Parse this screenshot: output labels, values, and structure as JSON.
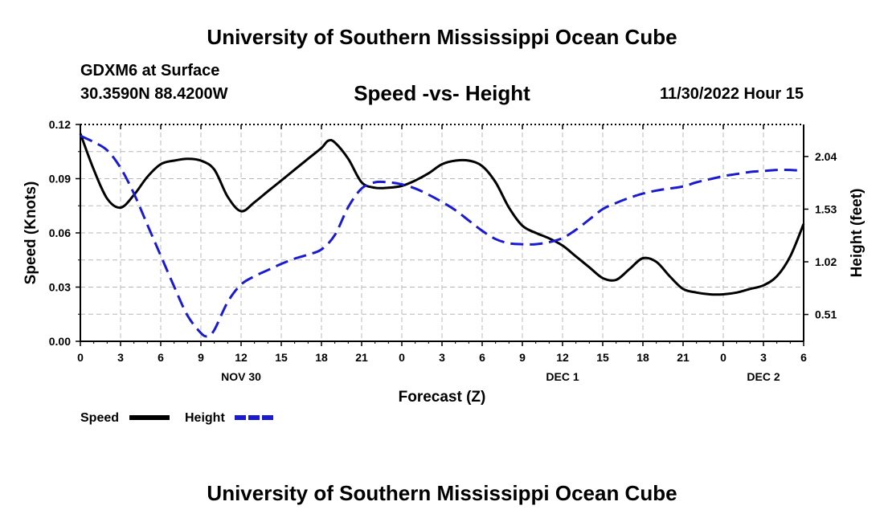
{
  "header": {
    "title": "University of Southern Mississippi Ocean Cube",
    "station": "GDXM6 at Surface",
    "coords": "30.3590N  88.4200W",
    "chart_title": "Speed -vs- Height",
    "datetime": "11/30/2022 Hour 15"
  },
  "footer": {
    "title": "University of Southern Mississippi Ocean Cube"
  },
  "colors": {
    "speed": "#000000",
    "height": "#1a1ad0",
    "grid": "#b8b8b8"
  },
  "chart_data": {
    "type": "line",
    "title": "Speed -vs- Height",
    "xlabel": "Forecast (Z)",
    "ylabel": "Speed (Knots)",
    "y2label": "Height (feet)",
    "xlim": [
      0,
      54
    ],
    "ylim": [
      0,
      0.12
    ],
    "y2lim": [
      0.25,
      2.35
    ],
    "x_tick_values": [
      0,
      3,
      6,
      9,
      12,
      15,
      18,
      21,
      24,
      27,
      30,
      33,
      36,
      39,
      42,
      45,
      48,
      51,
      54
    ],
    "x_tick_labels": [
      "0",
      "3",
      "6",
      "9",
      "12",
      "15",
      "18",
      "21",
      "0",
      "3",
      "6",
      "9",
      "12",
      "15",
      "18",
      "21",
      "0",
      "3",
      "6"
    ],
    "date_labels": [
      {
        "x": 12,
        "label": "NOV 30"
      },
      {
        "x": 36,
        "label": "DEC 1"
      },
      {
        "x": 51,
        "label": "DEC 2"
      }
    ],
    "y_ticks": [
      0,
      0.03,
      0.06,
      0.09,
      0.12
    ],
    "y_tick_labels": [
      "0.00",
      "0.03",
      "0.06",
      "0.09",
      "0.12"
    ],
    "y2_ticks": [
      0.51,
      1.02,
      1.53,
      2.04
    ],
    "y2_tick_labels": [
      "0.51",
      "1.02",
      "1.53",
      "2.04"
    ],
    "series": [
      {
        "name": "Speed",
        "axis": "left",
        "style": "solid",
        "x": [
          0,
          1,
          2,
          3,
          4,
          5,
          6,
          7,
          8,
          9,
          10,
          11,
          12,
          13,
          14,
          15,
          16,
          17,
          18,
          18.5,
          19,
          20,
          21,
          22,
          23,
          24,
          25,
          26,
          27,
          28,
          29,
          30,
          31,
          32,
          33,
          34,
          35,
          36,
          37,
          38,
          39,
          40,
          41,
          42,
          43,
          44,
          45,
          46,
          47,
          48,
          49,
          50,
          51,
          52,
          53,
          54
        ],
        "values": [
          0.115,
          0.095,
          0.079,
          0.074,
          0.081,
          0.091,
          0.098,
          0.1,
          0.101,
          0.1,
          0.095,
          0.08,
          0.072,
          0.077,
          0.083,
          0.089,
          0.095,
          0.101,
          0.107,
          0.111,
          0.11,
          0.101,
          0.088,
          0.085,
          0.085,
          0.086,
          0.089,
          0.093,
          0.098,
          0.1,
          0.1,
          0.097,
          0.088,
          0.074,
          0.064,
          0.06,
          0.057,
          0.053,
          0.047,
          0.041,
          0.035,
          0.034,
          0.04,
          0.046,
          0.044,
          0.036,
          0.029,
          0.027,
          0.026,
          0.026,
          0.027,
          0.029,
          0.031,
          0.036,
          0.047,
          0.065
        ]
      },
      {
        "name": "Height",
        "axis": "right",
        "style": "dashed",
        "x": [
          0,
          1,
          2,
          3,
          4,
          5,
          6,
          7,
          8,
          9,
          9.5,
          10,
          11,
          12,
          13,
          14,
          15,
          16,
          17,
          18,
          19,
          20,
          21,
          22,
          23,
          24,
          25,
          26,
          27,
          28,
          29,
          30,
          31,
          32,
          33,
          34,
          35,
          36,
          37,
          38,
          39,
          40,
          41,
          42,
          43,
          44,
          45,
          46,
          47,
          48,
          49,
          50,
          51,
          52,
          53,
          54
        ],
        "values": [
          2.24,
          2.18,
          2.1,
          1.93,
          1.68,
          1.38,
          1.08,
          0.78,
          0.5,
          0.33,
          0.3,
          0.36,
          0.63,
          0.8,
          0.88,
          0.94,
          1.0,
          1.05,
          1.09,
          1.14,
          1.28,
          1.55,
          1.73,
          1.79,
          1.79,
          1.77,
          1.73,
          1.67,
          1.6,
          1.52,
          1.42,
          1.32,
          1.24,
          1.2,
          1.19,
          1.19,
          1.21,
          1.25,
          1.33,
          1.43,
          1.53,
          1.59,
          1.64,
          1.68,
          1.71,
          1.73,
          1.75,
          1.79,
          1.82,
          1.85,
          1.87,
          1.89,
          1.9,
          1.91,
          1.91,
          1.9
        ]
      }
    ],
    "legend": [
      {
        "label": "Speed",
        "style": "solid"
      },
      {
        "label": "Height",
        "style": "dashed"
      }
    ]
  }
}
